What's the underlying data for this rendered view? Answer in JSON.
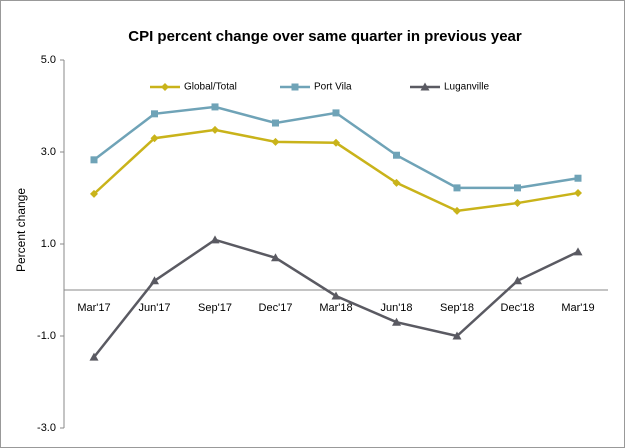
{
  "chart_data": {
    "type": "line",
    "title": "CPI percent change over same quarter in previous year",
    "y_label": "Percent change",
    "categories": [
      "Mar'17",
      "Jun'17",
      "Sep'17",
      "Dec'17",
      "Mar'18",
      "Jun'18",
      "Sep'18",
      "Dec'18",
      "Mar'19"
    ],
    "series": [
      {
        "name": "Global/Total",
        "color": "#c9b31a",
        "marker": "diamond",
        "values": [
          2.09,
          3.3,
          3.48,
          3.22,
          3.2,
          2.33,
          1.72,
          1.89,
          2.11
        ]
      },
      {
        "name": "Port Vila",
        "color": "#6fa3b7",
        "marker": "square",
        "values": [
          2.83,
          3.83,
          3.98,
          3.63,
          3.85,
          2.93,
          2.22,
          2.22,
          2.43
        ]
      },
      {
        "name": "Luganville",
        "color": "#5a5a62",
        "marker": "triangle",
        "values": [
          -1.46,
          0.2,
          1.09,
          0.7,
          -0.13,
          -0.7,
          -1.0,
          0.2,
          0.83
        ]
      }
    ],
    "ylim": [
      -3,
      5
    ],
    "yticks": [
      {
        "value": -3,
        "label": "-3.0"
      },
      {
        "value": -1,
        "label": "-1.0"
      },
      {
        "value": 1,
        "label": "1.0"
      },
      {
        "value": 3,
        "label": "3.0"
      },
      {
        "value": 5,
        "label": "5.0"
      }
    ],
    "grid": false,
    "legend": "top"
  }
}
